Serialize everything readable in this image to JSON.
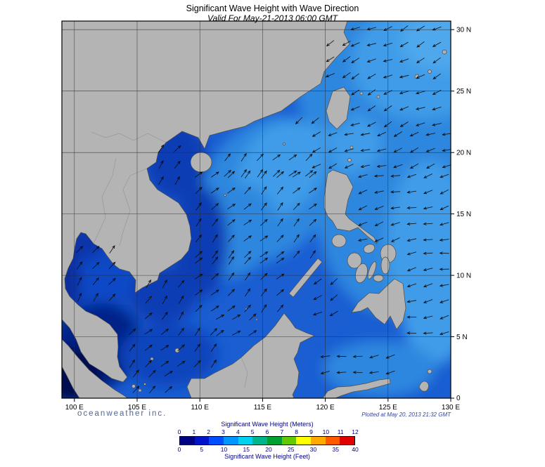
{
  "header": {
    "title": "Significant Wave Height with Wave Direction",
    "subtitle": "Valid For May-21-2013 06:00 GMT"
  },
  "footer": {
    "brand": "oceanweather inc.",
    "plotted": "Plotted at May 20, 2013 21:32 GMT"
  },
  "axes": {
    "lat_labels": [
      "30 N",
      "25 N",
      "20 N",
      "15 N",
      "10 N",
      "5 N",
      "0"
    ],
    "lon_labels": [
      "100 E",
      "105 E",
      "110 E",
      "115 E",
      "120 E",
      "125 E",
      "130 E"
    ]
  },
  "legend": {
    "meters_label": "Significant Wave Height (Meters)",
    "feet_label": "Significant Wave Height (Feet)",
    "meters_ticks": [
      0,
      1,
      2,
      3,
      4,
      5,
      6,
      7,
      8,
      9,
      10,
      11,
      12
    ],
    "feet_ticks": [
      0,
      5,
      10,
      15,
      20,
      25,
      30,
      35,
      40
    ],
    "colors": [
      "#000082",
      "#0014c8",
      "#004cff",
      "#0096ff",
      "#00d2f0",
      "#00b48c",
      "#00a032",
      "#64c800",
      "#ffff00",
      "#ffaa00",
      "#ff5a00",
      "#e10000"
    ]
  },
  "map": {
    "lon_range": [
      99,
      130
    ],
    "lat_range": [
      0,
      30.7
    ],
    "grid_lon": [
      100,
      105,
      110,
      115,
      120,
      125,
      130
    ],
    "grid_lat": [
      0,
      5,
      10,
      15,
      20,
      25,
      30
    ],
    "ocean_base_color": "#1a5ed2",
    "land_color": "#b4b4b4",
    "shade_patches": [
      {
        "lon": 126.6,
        "lat": 25.5,
        "rx_deg": 9.0,
        "ry_deg": 7.5,
        "rot": 0,
        "color": "#2d87de"
      },
      {
        "lon": 125.5,
        "lat": 15.3,
        "rx_deg": 6.2,
        "ry_deg": 8.6,
        "rot": 0,
        "color": "#2d87de"
      },
      {
        "lon": 127.7,
        "lat": 27.3,
        "rx_deg": 5.6,
        "ry_deg": 4.6,
        "rot": 0,
        "color": "#3f9ce8"
      },
      {
        "lon": 128.3,
        "lat": 12.4,
        "rx_deg": 3.4,
        "ry_deg": 6.9,
        "rot": 0,
        "color": "#3f9ce8"
      },
      {
        "lon": 121.5,
        "lat": 20.7,
        "rx_deg": 3.0,
        "ry_deg": 2.5,
        "rot": 0,
        "color": "#3f9ce8"
      },
      {
        "lon": 115.4,
        "lat": 17.0,
        "rx_deg": 5.0,
        "ry_deg": 6.3,
        "rot": 35,
        "color": "#2d87de"
      },
      {
        "lon": 116.5,
        "lat": 18.7,
        "rx_deg": 3.1,
        "ry_deg": 4.3,
        "rot": 35,
        "color": "#3f9ce8"
      },
      {
        "lon": 112.6,
        "lat": 13.6,
        "rx_deg": 3.4,
        "ry_deg": 4.0,
        "rot": 35,
        "color": "#2d87de"
      },
      {
        "lon": 108.1,
        "lat": 19.3,
        "rx_deg": 2.5,
        "ry_deg": 3.2,
        "rot": 0,
        "color": "#0c3cb4"
      },
      {
        "lon": 110.0,
        "lat": 12.7,
        "rx_deg": 2.2,
        "ry_deg": 4.6,
        "rot": 0,
        "color": "#0c3cb4"
      },
      {
        "lon": 107.0,
        "lat": 8.4,
        "rx_deg": 2.8,
        "ry_deg": 2.3,
        "rot": 0,
        "color": "#0c3cb4"
      },
      {
        "lon": 101.9,
        "lat": 10.4,
        "rx_deg": 3.1,
        "ry_deg": 3.4,
        "rot": 0,
        "color": "#1148c6"
      },
      {
        "lon": 100.8,
        "lat": 12.7,
        "rx_deg": 1.7,
        "ry_deg": 1.4,
        "rot": 0,
        "color": "#0a35aa"
      },
      {
        "lon": 101.6,
        "lat": 4.1,
        "rx_deg": 3.9,
        "ry_deg": 3.4,
        "rot": -40,
        "color": "#062488"
      },
      {
        "lon": 99.8,
        "lat": 1.9,
        "rx_deg": 2.5,
        "ry_deg": 2.3,
        "rot": 0,
        "color": "#021050"
      },
      {
        "lon": 107.5,
        "lat": 3.5,
        "rx_deg": 3.9,
        "ry_deg": 2.6,
        "rot": 0,
        "color": "#0e44bc"
      },
      {
        "lon": 128.8,
        "lat": 7.8,
        "rx_deg": 2.8,
        "ry_deg": 5.1,
        "rot": 0,
        "color": "#3f9ce8"
      },
      {
        "lon": 124.3,
        "lat": 2.4,
        "rx_deg": 4.5,
        "ry_deg": 2.3,
        "rot": 0,
        "color": "#2d87de"
      },
      {
        "lon": 129.4,
        "lat": 29.0,
        "rx_deg": 3.4,
        "ry_deg": 2.3,
        "rot": 0,
        "color": "#4fa8ec"
      },
      {
        "lon": 120.4,
        "lat": 23.8,
        "rx_deg": 2.0,
        "ry_deg": 2.0,
        "rot": 0,
        "color": "#2d87de"
      },
      {
        "lon": 99.3,
        "lat": 9.5,
        "rx_deg": 1.2,
        "ry_deg": 3.0,
        "rot": 0,
        "color": "#0a2f9e"
      }
    ],
    "arrow_regions": [
      {
        "lon": [
          122.4,
          129.7
        ],
        "lat": [
          22.3,
          30.4
        ],
        "dir": 205
      },
      {
        "lon": [
          119.3,
          129.7
        ],
        "lat": [
          18.9,
          21.8
        ],
        "dir": 200
      },
      {
        "lon": [
          123.0,
          129.7
        ],
        "lat": [
          12.9,
          18.5
        ],
        "dir": 195
      },
      {
        "lon": [
          126.9,
          129.7
        ],
        "lat": [
          5.3,
          12.6
        ],
        "dir": 190
      },
      {
        "lon": [
          120.4,
          122.1
        ],
        "lat": [
          26.3,
          29.9
        ],
        "dir": 205
      },
      {
        "lon": [
          117.9,
          119.7
        ],
        "lat": [
          22.6,
          23.8
        ],
        "dir": 213
      },
      {
        "lon": [
          109.9,
          119.1
        ],
        "lat": [
          11.7,
          18.2
        ],
        "dir": 45
      },
      {
        "lon": [
          112.2,
          119.1
        ],
        "lat": [
          18.3,
          19.9
        ],
        "dir": 45
      },
      {
        "lon": [
          109.9,
          116.6
        ],
        "lat": [
          7.3,
          11.5
        ],
        "dir": 45
      },
      {
        "lon": [
          105.9,
          109.4
        ],
        "lat": [
          6.7,
          9.4
        ],
        "dir": 50
      },
      {
        "lon": [
          106.9,
          108.9
        ],
        "lat": [
          17.7,
          20.5
        ],
        "dir": 50
      },
      {
        "lon": [
          100.4,
          103.1
        ],
        "lat": [
          8.2,
          12.2
        ],
        "dir": 55
      },
      {
        "lon": [
          104.6,
          111.2
        ],
        "lat": [
          2.8,
          6.6
        ],
        "dir": 45
      },
      {
        "lon": [
          111.6,
          114.9
        ],
        "lat": [
          5.3,
          6.6
        ],
        "dir": 40
      },
      {
        "lon": [
          104.9,
          108.6
        ],
        "lat": [
          0.7,
          2.4
        ],
        "dir": 40
      },
      {
        "lon": [
          119.4,
          121.6
        ],
        "lat": [
          6.9,
          10.2
        ],
        "dir": 210
      },
      {
        "lon": [
          120.0,
          126.4
        ],
        "lat": [
          2.1,
          4.4
        ],
        "dir": 190
      }
    ]
  }
}
